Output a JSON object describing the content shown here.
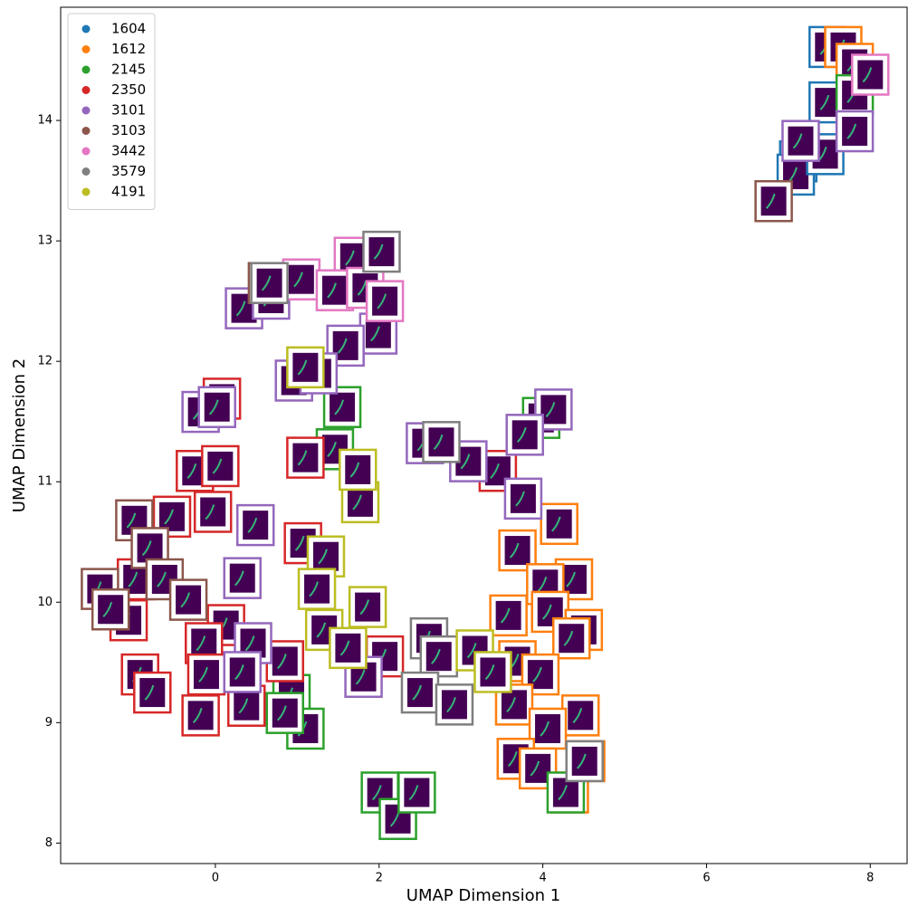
{
  "chart_data": {
    "type": "scatter",
    "xlabel": "UMAP Dimension 1",
    "ylabel": "UMAP Dimension 2",
    "xlim": [
      -1.89,
      8.45
    ],
    "ylim": [
      7.83,
      14.94
    ],
    "xticks": [
      0,
      2,
      4,
      6,
      8
    ],
    "yticks": [
      8,
      9,
      10,
      11,
      12,
      13,
      14
    ],
    "legend": "upper left",
    "series": [
      {
        "name": "1604",
        "color": "#1f77b4",
        "x": [
          7.48,
          7.48,
          7.12,
          7.09,
          7.45
        ],
        "y": [
          14.61,
          14.15,
          13.66,
          13.55,
          13.72
        ]
      },
      {
        "name": "1612",
        "color": "#ff7f0e",
        "x": [
          7.67,
          7.81,
          4.2,
          3.69,
          4.38,
          4.03,
          3.58,
          4.09,
          4.5,
          4.35,
          3.69,
          3.97,
          3.65,
          4.46,
          4.06,
          3.67,
          3.94,
          4.33,
          4.53
        ],
        "y": [
          14.61,
          14.47,
          10.65,
          10.43,
          10.19,
          10.15,
          9.89,
          9.92,
          9.77,
          9.7,
          9.51,
          9.4,
          9.15,
          9.06,
          8.95,
          8.7,
          8.62,
          8.42,
          8.68
        ]
      },
      {
        "name": "2145",
        "color": "#2ca02c",
        "x": [
          7.81,
          3.98,
          1.55,
          1.46,
          0.93,
          1.1,
          0.85,
          2.01,
          2.23,
          2.46,
          4.28
        ],
        "y": [
          14.21,
          11.53,
          11.62,
          11.27,
          9.23,
          8.95,
          9.08,
          8.42,
          8.2,
          8.42,
          8.42
        ]
      },
      {
        "name": "2350",
        "color": "#d62728",
        "x": [
          0.08,
          -0.25,
          0.06,
          -0.53,
          -0.03,
          1.07,
          -0.97,
          -1.06,
          0.13,
          -0.14,
          -0.92,
          -0.77,
          -0.11,
          -0.18,
          0.38,
          0.85,
          2.07,
          3.45,
          1.1
        ],
        "y": [
          11.69,
          11.09,
          11.13,
          10.71,
          10.75,
          10.49,
          10.19,
          9.85,
          9.81,
          9.66,
          9.4,
          9.25,
          9.4,
          9.06,
          9.14,
          9.51,
          9.55,
          11.09,
          11.2
        ]
      },
      {
        "name": "3101",
        "color": "#9467bd",
        "x": [
          7.81,
          7.15,
          0.35,
          1.99,
          1.59,
          -0.18,
          0.02,
          0.96,
          1.26,
          2.56,
          3.09,
          3.76,
          4.13,
          3.78,
          0.49,
          0.33,
          1.81,
          0.46,
          0.33,
          0.68
        ],
        "y": [
          13.91,
          13.83,
          12.44,
          12.23,
          12.13,
          11.58,
          11.62,
          11.84,
          11.9,
          11.32,
          11.17,
          10.86,
          11.6,
          11.39,
          10.64,
          10.2,
          9.38,
          9.66,
          9.42,
          12.52
        ]
      },
      {
        "name": "3103",
        "color": "#8c564b",
        "x": [
          6.82,
          0.63,
          -0.99,
          -0.8,
          -1.41,
          -0.62,
          -0.33,
          -1.28
        ],
        "y": [
          13.33,
          12.65,
          10.68,
          10.45,
          10.11,
          10.19,
          10.02,
          9.94
        ]
      },
      {
        "name": "3442",
        "color": "#e377c2",
        "x": [
          8.0,
          1.68,
          1.05,
          1.46,
          1.83,
          2.07
        ],
        "y": [
          14.38,
          12.86,
          12.68,
          12.59,
          12.61,
          12.5
        ]
      },
      {
        "name": "3579",
        "color": "#7f7f7f",
        "x": [
          2.03,
          2.76,
          2.61,
          2.73,
          2.5,
          2.92,
          4.51,
          0.66
        ],
        "y": [
          12.91,
          11.33,
          9.7,
          9.55,
          9.25,
          9.15,
          8.68,
          12.65
        ]
      },
      {
        "name": "4191",
        "color": "#bcbd22",
        "x": [
          1.1,
          1.77,
          1.74,
          1.35,
          1.24,
          1.86,
          1.33,
          1.62,
          3.17,
          3.39
        ],
        "y": [
          11.95,
          10.83,
          11.1,
          10.38,
          10.11,
          9.96,
          9.77,
          9.62,
          9.6,
          9.42
        ]
      }
    ]
  }
}
